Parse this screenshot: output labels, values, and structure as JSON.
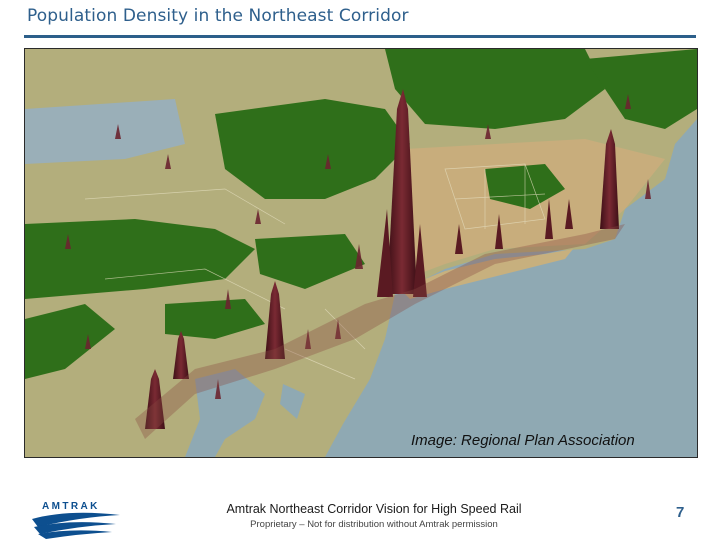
{
  "slide": {
    "title": "Population Density in the Northeast Corridor",
    "page_number": "7"
  },
  "map": {
    "credit": "Image: Regional Plan Association",
    "colors": {
      "water": "#8fa9b3",
      "land_low": "#b3ae7c",
      "land_mid": "#c8ad7c",
      "forest": "#2f6f1a",
      "density_peak": "#5a1a22"
    }
  },
  "footer": {
    "logo_text": "AMTRAK",
    "title": "Amtrak Northeast Corridor Vision for High Speed Rail",
    "subtitle": "Proprietary – Not for distribution without Amtrak permission"
  }
}
